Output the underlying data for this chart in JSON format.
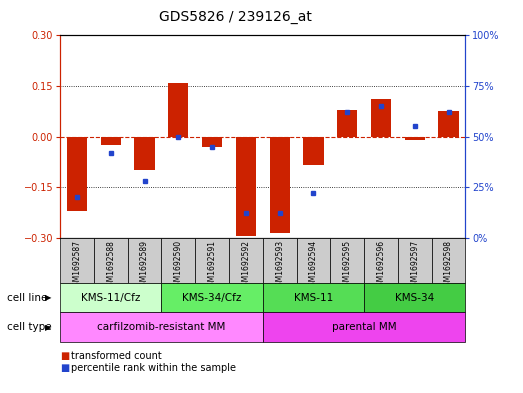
{
  "title": "GDS5826 / 239126_at",
  "samples": [
    "GSM1692587",
    "GSM1692588",
    "GSM1692589",
    "GSM1692590",
    "GSM1692591",
    "GSM1692592",
    "GSM1692593",
    "GSM1692594",
    "GSM1692595",
    "GSM1692596",
    "GSM1692597",
    "GSM1692598"
  ],
  "transformed_count": [
    -0.22,
    -0.025,
    -0.1,
    0.16,
    -0.03,
    -0.295,
    -0.285,
    -0.085,
    0.08,
    0.11,
    -0.01,
    0.075
  ],
  "percentile_rank": [
    20,
    42,
    28,
    50,
    45,
    12,
    12,
    22,
    62,
    65,
    55,
    62
  ],
  "bar_color": "#cc2200",
  "dot_color": "#2244cc",
  "ylim_left": [
    -0.3,
    0.3
  ],
  "ylim_right": [
    0,
    100
  ],
  "yticks_left": [
    -0.3,
    -0.15,
    0,
    0.15,
    0.3
  ],
  "yticks_right": [
    0,
    25,
    50,
    75,
    100
  ],
  "ytick_labels_right": [
    "0%",
    "25%",
    "50%",
    "75%",
    "100%"
  ],
  "cell_line_groups": [
    {
      "label": "KMS-11/Cfz",
      "start": 0,
      "end": 3,
      "color": "#ccffcc"
    },
    {
      "label": "KMS-34/Cfz",
      "start": 3,
      "end": 6,
      "color": "#66ee66"
    },
    {
      "label": "KMS-11",
      "start": 6,
      "end": 9,
      "color": "#55dd55"
    },
    {
      "label": "KMS-34",
      "start": 9,
      "end": 12,
      "color": "#44cc44"
    }
  ],
  "cell_type_groups": [
    {
      "label": "carfilzomib-resistant MM",
      "start": 0,
      "end": 6,
      "color": "#ff88ff"
    },
    {
      "label": "parental MM",
      "start": 6,
      "end": 12,
      "color": "#ee44ee"
    }
  ],
  "cell_line_row_label": "cell line",
  "cell_type_row_label": "cell type",
  "legend_red": "transformed count",
  "legend_blue": "percentile rank within the sample",
  "background_color": "#ffffff",
  "sample_box_color": "#cccccc",
  "title_fontsize": 10,
  "tick_fontsize": 7,
  "sample_fontsize": 5.5,
  "group_fontsize": 7.5,
  "legend_fontsize": 7
}
